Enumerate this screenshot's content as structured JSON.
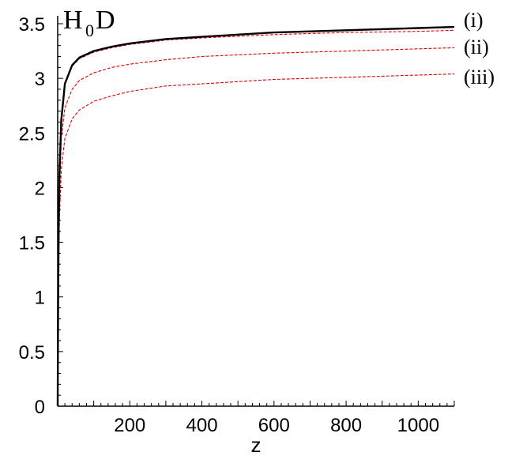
{
  "chart_data": {
    "type": "line",
    "title": "H",
    "title_subscript": "0",
    "title_suffix": "D",
    "xlabel": "z",
    "ylabel": "",
    "xlim": [
      0,
      1100
    ],
    "ylim": [
      0,
      3.5
    ],
    "x_ticks": [
      200,
      400,
      600,
      800,
      1000
    ],
    "x_tick_labels": [
      "200",
      "400",
      "600",
      "800",
      "1000"
    ],
    "y_ticks": [
      0,
      0.5,
      1,
      1.5,
      2,
      2.5,
      3,
      3.5
    ],
    "y_tick_labels": [
      "0",
      "0.5",
      "1",
      "1.5",
      "2",
      "2.5",
      "3",
      "3.5"
    ],
    "grid": false,
    "colors": {
      "solid": "#000000",
      "dashed": "#e00000"
    },
    "curve_labels": [
      "(i)",
      "(ii)",
      "(iii)"
    ],
    "x": [
      0,
      1,
      3,
      5,
      10,
      20,
      40,
      60,
      100,
      150,
      200,
      300,
      400,
      600,
      800,
      1000,
      1100
    ],
    "series": [
      {
        "style": "solid",
        "color": "#000000",
        "values": [
          0,
          0.85,
          1.72,
          2.13,
          2.62,
          2.95,
          3.12,
          3.19,
          3.25,
          3.29,
          3.32,
          3.36,
          3.38,
          3.42,
          3.44,
          3.46,
          3.47
        ]
      },
      {
        "style": "dashed",
        "color": "#e00000",
        "label_index": 0,
        "values": [
          0,
          0.85,
          1.72,
          2.13,
          2.62,
          2.94,
          3.11,
          3.18,
          3.24,
          3.28,
          3.31,
          3.35,
          3.37,
          3.4,
          3.42,
          3.43,
          3.44
        ]
      },
      {
        "style": "dashed",
        "color": "#e00000",
        "label_index": 1,
        "values": [
          0,
          0.8,
          1.6,
          1.98,
          2.45,
          2.73,
          2.9,
          2.98,
          3.05,
          3.1,
          3.13,
          3.17,
          3.2,
          3.23,
          3.25,
          3.27,
          3.28
        ]
      },
      {
        "style": "dashed",
        "color": "#e00000",
        "label_index": 2,
        "values": [
          0,
          0.72,
          1.4,
          1.74,
          2.17,
          2.45,
          2.63,
          2.71,
          2.79,
          2.84,
          2.88,
          2.93,
          2.95,
          2.99,
          3.01,
          3.03,
          3.04
        ]
      }
    ]
  }
}
